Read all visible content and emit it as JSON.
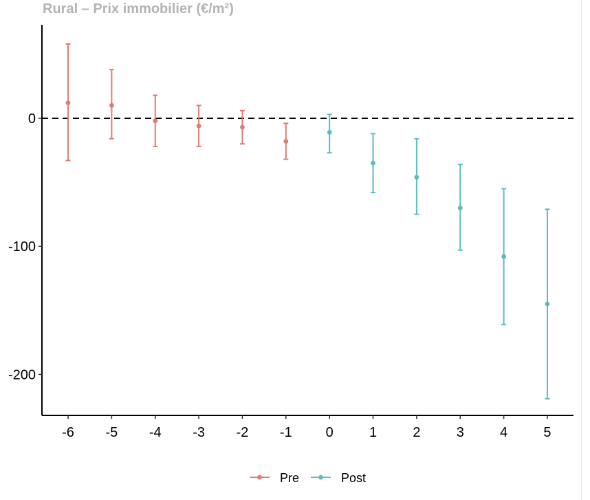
{
  "chart_data": {
    "type": "scatter",
    "title": "Rural – Prix immobilier (€/m²)",
    "xlabel": "",
    "ylabel": "",
    "x_ticks": [
      "-6",
      "-5",
      "-4",
      "-3",
      "-2",
      "-1",
      "0",
      "1",
      "2",
      "3",
      "4",
      "5"
    ],
    "y_ticks": [
      "0",
      "-100",
      "-200"
    ],
    "xlim": [
      -6.6,
      5.6
    ],
    "ylim": [
      -232,
      73
    ],
    "reference_line": {
      "y": 0,
      "style": "dashed"
    },
    "legend_position": "bottom",
    "series": [
      {
        "name": "Pre",
        "color": "#e07b72",
        "points": [
          {
            "x": -6,
            "y": 12,
            "low": -33,
            "high": 58
          },
          {
            "x": -5,
            "y": 10,
            "low": -16,
            "high": 38
          },
          {
            "x": -4,
            "y": -2,
            "low": -22,
            "high": 18
          },
          {
            "x": -3,
            "y": -6,
            "low": -22,
            "high": 10
          },
          {
            "x": -2,
            "y": -7,
            "low": -20,
            "high": 6
          },
          {
            "x": -1,
            "y": -18,
            "low": -32,
            "high": -4
          }
        ]
      },
      {
        "name": "Post",
        "color": "#5bbcbf",
        "points": [
          {
            "x": 0,
            "y": -11,
            "low": -27,
            "high": 3
          },
          {
            "x": 1,
            "y": -35,
            "low": -58,
            "high": -12
          },
          {
            "x": 2,
            "y": -46,
            "low": -75,
            "high": -16
          },
          {
            "x": 3,
            "y": -70,
            "low": -103,
            "high": -36
          },
          {
            "x": 4,
            "y": -108,
            "low": -161,
            "high": -55
          },
          {
            "x": 5,
            "y": -145,
            "low": -219,
            "high": -71
          }
        ]
      }
    ]
  }
}
